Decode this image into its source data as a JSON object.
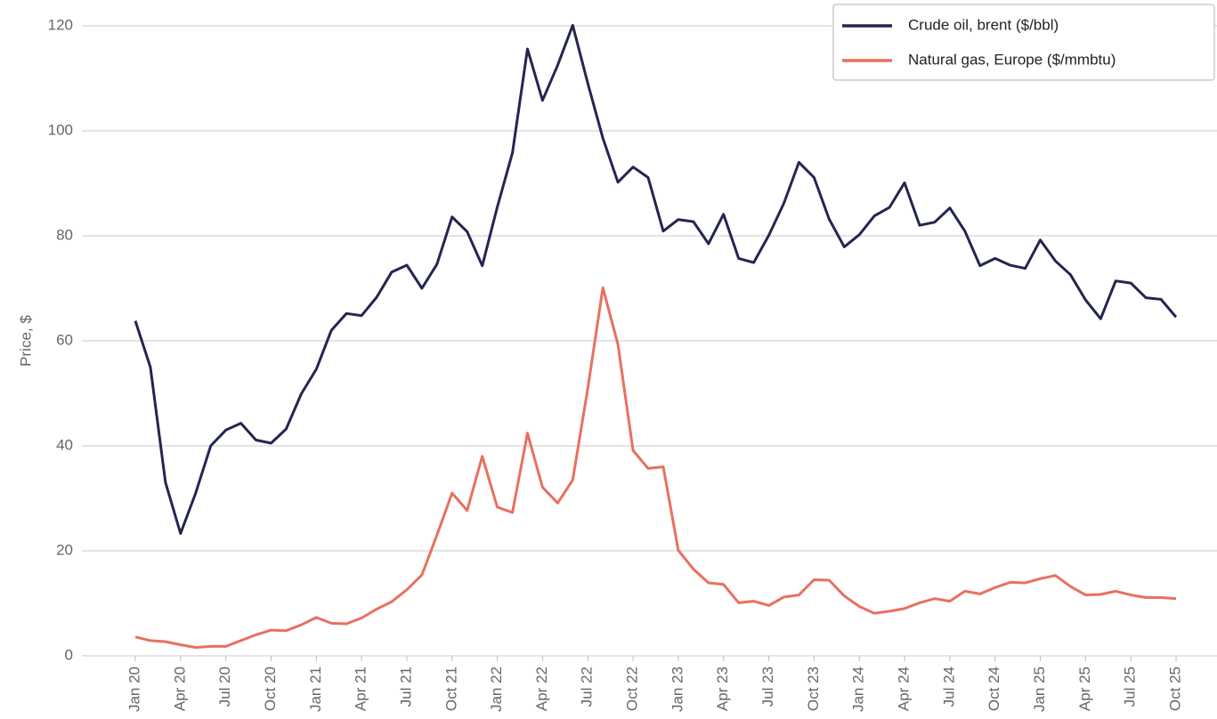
{
  "chart_data": {
    "type": "line",
    "y_label": "Price, $",
    "categories": [
      "Jan 20",
      null,
      null,
      "Apr 20",
      null,
      null,
      "Jul 20",
      null,
      null,
      "Oct 20",
      null,
      null,
      "Jan 21",
      null,
      null,
      "Apr 21",
      null,
      null,
      "Jul 21",
      null,
      null,
      "Oct 21",
      null,
      null,
      "Jan 22",
      null,
      null,
      "Apr 22",
      null,
      null,
      "Jul 22",
      null,
      null,
      "Oct 22",
      null,
      null,
      "Jan 23",
      null,
      null,
      "Apr 23",
      null,
      null,
      "Jul 23",
      null,
      null,
      "Oct 23",
      null,
      null,
      "Jan 24",
      null,
      null,
      "Apr 24",
      null,
      null,
      "Jul 24",
      null,
      null,
      "Oct 24",
      null,
      null,
      "Jan 25",
      null,
      null,
      "Apr 25",
      null,
      null,
      "Jul 25",
      null,
      null,
      "Oct 25"
    ],
    "series": [
      {
        "name": "Crude oil, brent ($/bbl)",
        "color": "#23264f",
        "values": [
          63.8,
          55,
          33,
          23.3,
          31,
          40,
          43,
          44.3,
          41.1,
          40.5,
          43.2,
          49.9,
          54.6,
          62,
          65.2,
          64.8,
          68.3,
          73.1,
          74.4,
          70,
          74.6,
          83.6,
          80.8,
          74.3,
          85.5,
          95.8,
          115.6,
          105.8,
          112.5,
          120.1,
          109,
          98.6,
          90.2,
          93.1,
          91.1,
          80.9,
          83.1,
          82.7,
          78.5,
          84.1,
          75.7,
          74.9,
          80.1,
          86.2,
          94,
          91.1,
          83.2,
          77.9,
          80.2,
          83.8,
          85.4,
          90.1,
          82,
          82.6,
          85.3,
          80.9,
          74.3,
          75.7,
          74.4,
          73.8,
          79.2,
          75.2,
          72.6,
          67.8,
          64.2,
          71.4,
          71,
          68.2,
          67.9,
          64.5
        ]
      },
      {
        "name": "Natural gas, Europe ($/mmbtu)",
        "color": "#e8705f",
        "values": [
          3.6,
          2.9,
          2.7,
          2.1,
          1.6,
          1.8,
          1.8,
          2.9,
          4,
          4.9,
          4.8,
          5.9,
          7.3,
          6.2,
          6.1,
          7.2,
          8.9,
          10.3,
          12.6,
          15.4,
          23,
          31,
          27.7,
          38,
          28.3,
          27.3,
          42.4,
          32.1,
          29.1,
          33.5,
          51,
          70.1,
          59.3,
          39.1,
          35.7,
          36,
          20.1,
          16.5,
          13.9,
          13.6,
          10.1,
          10.4,
          9.6,
          11.2,
          11.6,
          14.5,
          14.4,
          11.4,
          9.4,
          8.1,
          8.5,
          9,
          10.1,
          10.9,
          10.4,
          12.3,
          11.8,
          13,
          14,
          13.9,
          14.7,
          15.3,
          13.2,
          11.6,
          11.7,
          12.3,
          11.6,
          11.1,
          11.1,
          10.9
        ]
      }
    ],
    "ylim": [
      0,
      120
    ],
    "yticks": [
      0,
      20,
      40,
      60,
      80,
      100,
      120
    ],
    "grid": true,
    "legend": "top-right"
  }
}
